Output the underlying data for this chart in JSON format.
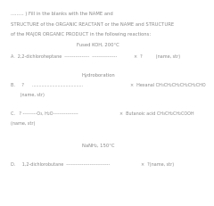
{
  "bg_color": "#ffffff",
  "text_color": "#888888",
  "header1": "......... ) Fill in the blanks with the NAME and",
  "header2": "STRUCTURE of the ORGANIC REACTANT or the NAME and STRUCTURE",
  "header3": "of the MAJOR ORGANIC PRODUCT in the following reactions:",
  "cond_A": "Fused KOH, 200°C",
  "rxn_A_left": "A.  2,2-dichloroheptane  ----------------  ----------------",
  "rxn_A_right": "×  ?          (name, str)",
  "cond_B": "Hydroboration",
  "rxn_B_left": "B.     ?      ......................................",
  "rxn_B_right": "×  Hexanal CH₃CH₂CH₂CH₂CH₂CHO",
  "rxn_B_sub": "       (name, str)",
  "rxn_C": "C.   ? ---------O₃, H₂O----------------",
  "rxn_C_right": "×  Butanoic acid CH₃CH₂CH₂COOH",
  "rxn_C_sub": "(name, str)",
  "cond_D": "NaNH₂, 150°C",
  "rxn_D_left": "D.     1,2-dichlorobutane  ----------------------------",
  "rxn_D_right": "×  ?(name, str)",
  "fs_header": 3.8,
  "fs_body": 3.5,
  "fs_cond": 3.8
}
